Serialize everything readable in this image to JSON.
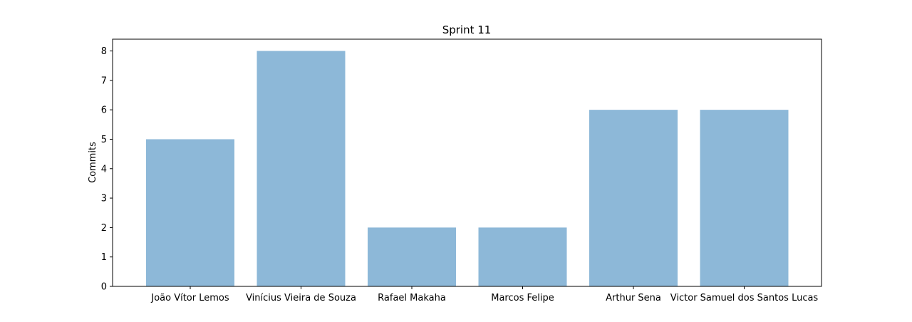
{
  "chart_data": {
    "type": "bar",
    "title": "Sprint 11",
    "xlabel": "",
    "ylabel": "Commits",
    "categories": [
      "João Vítor Lemos",
      "Vinícius Vieira de Souza",
      "Rafael Makaha",
      "Marcos Felipe",
      "Arthur Sena",
      "Victor Samuel dos Santos Lucas"
    ],
    "values": [
      5,
      8,
      2,
      2,
      6,
      6
    ],
    "ylim": [
      0,
      8.4
    ],
    "yticks": [
      0,
      1,
      2,
      3,
      4,
      5,
      6,
      7,
      8
    ],
    "grid": false,
    "bar_color": "#8db8d8"
  }
}
